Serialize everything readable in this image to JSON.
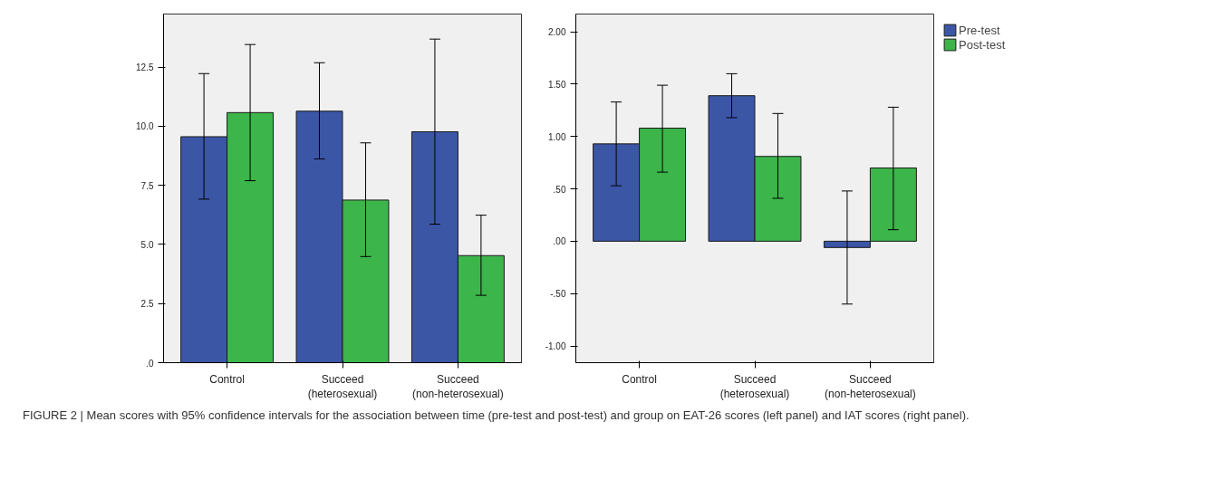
{
  "chart_data": [
    {
      "type": "bar",
      "categories": [
        "Control",
        "Succeed (heterosexual)",
        "Succeed (non-heterosexual)"
      ],
      "ylim": [
        0,
        14.75
      ],
      "yticks": [
        {
          "value": 0,
          "label": ".0"
        },
        {
          "value": 2.5,
          "label": "2.5"
        },
        {
          "value": 5,
          "label": "5.0"
        },
        {
          "value": 7.5,
          "label": "7.5"
        },
        {
          "value": 10,
          "label": "10.0"
        },
        {
          "value": 12.5,
          "label": "12.5"
        }
      ],
      "grid": false,
      "legend": false,
      "series": [
        {
          "color": "#3c56a6",
          "values": [
            9.56,
            10.64,
            9.77
          ],
          "errors": [
            [
              6.92,
              12.23
            ],
            [
              8.62,
              12.69
            ],
            [
              5.86,
              13.69
            ]
          ]
        },
        {
          "color": "#3cb54a",
          "values": [
            10.58,
            6.88,
            4.53
          ],
          "errors": [
            [
              7.7,
              13.46
            ],
            [
              4.49,
              9.3
            ],
            [
              2.85,
              6.24
            ]
          ]
        }
      ]
    },
    {
      "type": "bar",
      "categories": [
        "Control",
        "Succeed (heterosexual)",
        "Succeed (non-heterosexual)"
      ],
      "ylim": [
        -1.16,
        2.17
      ],
      "yticks": [
        {
          "value": -1,
          "label": "-1.00"
        },
        {
          "value": -0.5,
          "label": "-.50"
        },
        {
          "value": 0,
          "label": ".00"
        },
        {
          "value": 0.5,
          "label": ".50"
        },
        {
          "value": 1,
          "label": "1.00"
        },
        {
          "value": 1.5,
          "label": "1.50"
        },
        {
          "value": 2,
          "label": "2.00"
        }
      ],
      "grid": false,
      "legend": "right",
      "series": [
        {
          "name": "Pre-test",
          "color": "#3c56a6",
          "values": [
            0.93,
            1.39,
            -0.06
          ],
          "errors": [
            [
              0.53,
              1.33
            ],
            [
              1.18,
              1.6
            ],
            [
              -0.6,
              0.48
            ]
          ]
        },
        {
          "name": "Post-test",
          "color": "#3cb54a",
          "values": [
            1.08,
            0.81,
            0.7
          ],
          "errors": [
            [
              0.66,
              1.49
            ],
            [
              0.41,
              1.22
            ],
            [
              0.11,
              1.28
            ]
          ]
        }
      ],
      "annotations": [
        "FIGURE 2 | Mean scores with 95% confidence intervals for the association between time (pre-test and post-test) and group on EAT-26 scores (left panel) and IAT scores (right panel)."
      ]
    }
  ]
}
